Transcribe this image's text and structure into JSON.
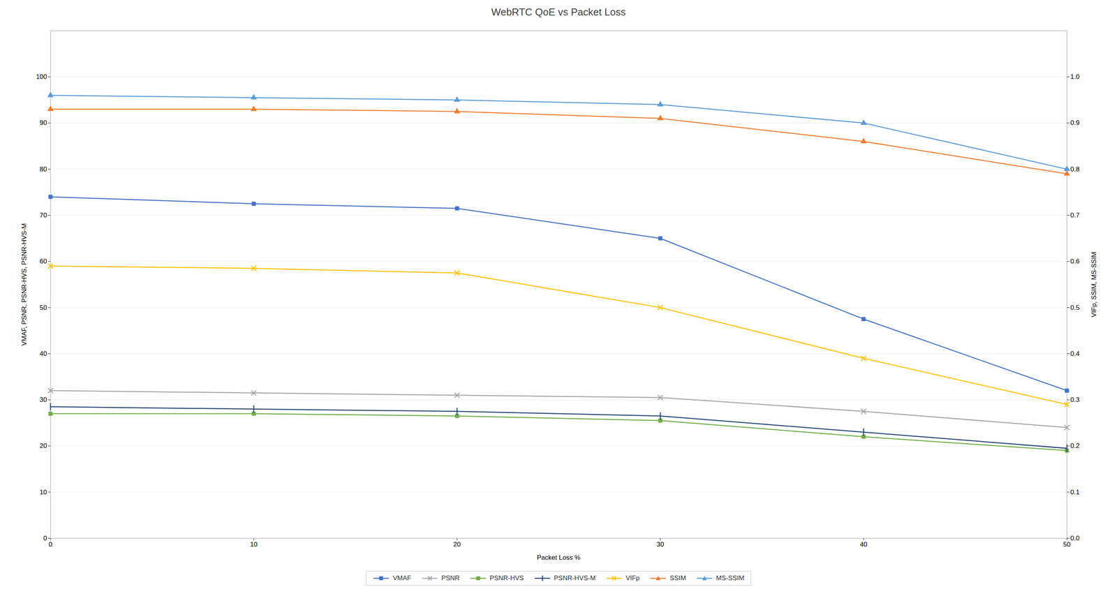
{
  "chart_data": {
    "type": "line",
    "title": "WebRTC QoE vs Packet Loss",
    "xlabel": "Packet Loss %",
    "ylabel": "VMAF, PSNR, PSNR-HVS, PSNR-HVS-M",
    "y2label": "VIFp, SSIM, MS-SSIM",
    "x": [
      0,
      10,
      20,
      30,
      40,
      50
    ],
    "series": [
      {
        "name": "VMAF",
        "color": "#4472C4",
        "marker": "square",
        "values": [
          74,
          72.5,
          71.5,
          65,
          47.5,
          32
        ]
      },
      {
        "name": "PSNR",
        "color": "#A5A5A5",
        "marker": "x",
        "values": [
          32,
          31.5,
          31,
          30.5,
          27.5,
          24
        ]
      },
      {
        "name": "PSNR-HVS",
        "color": "#70AD47",
        "marker": "square",
        "values": [
          27,
          27,
          26.5,
          25.5,
          22,
          19
        ]
      },
      {
        "name": "PSNR-HVS-M",
        "color": "#264478",
        "marker": "vline",
        "values": [
          28.5,
          28,
          27.5,
          26.5,
          23,
          19.5
        ]
      },
      {
        "name": "VIFp",
        "color": "#FFC000",
        "marker": "x",
        "axis": "y2",
        "values": [
          0.59,
          0.585,
          0.575,
          0.5,
          0.39,
          0.29
        ]
      },
      {
        "name": "SSIM",
        "color": "#ED7D31",
        "marker": "triangle",
        "axis": "y2",
        "values": [
          0.93,
          0.93,
          0.925,
          0.91,
          0.86,
          0.79
        ]
      },
      {
        "name": "MS-SSIM",
        "color": "#5B9BD5",
        "marker": "triangle",
        "axis": "y2",
        "values": [
          0.96,
          0.955,
          0.95,
          0.94,
          0.9,
          0.8
        ]
      }
    ],
    "xlim": [
      0,
      50
    ],
    "xticks": [
      0,
      10,
      20,
      30,
      40,
      50
    ],
    "ylim": [
      0,
      110
    ],
    "yticks": [
      0,
      10,
      20,
      30,
      40,
      50,
      60,
      70,
      80,
      90,
      100
    ],
    "y2lim": [
      0,
      1.1
    ],
    "y2ticks": [
      {
        "value": 0,
        "label": "0.0"
      },
      0.1,
      0.2,
      0.3,
      0.4,
      0.5,
      0.6,
      0.7,
      0.8,
      0.9,
      {
        "value": 1,
        "label": "1.0"
      }
    ],
    "grid": true,
    "legend": "bottom"
  }
}
